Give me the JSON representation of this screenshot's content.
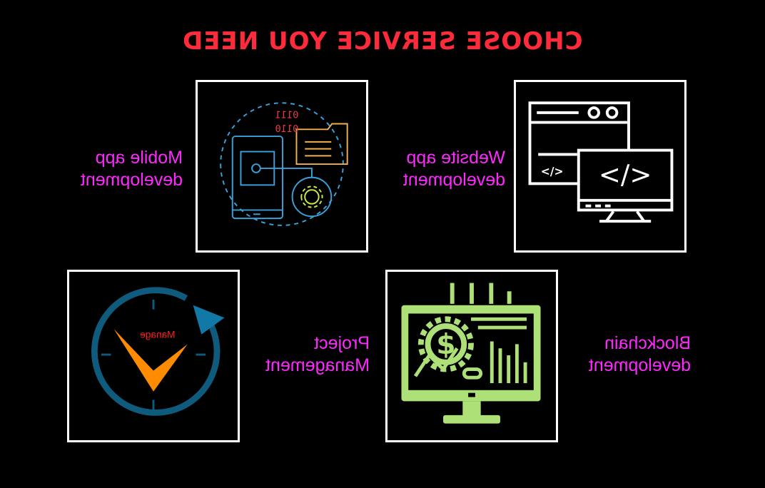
{
  "title": "CHOOSE SERVICE YOU NEED",
  "services": [
    {
      "line1": "Mobile app",
      "line2": "development",
      "icon": "mobile-app-icon",
      "binary1": "0111",
      "binary2": "0110"
    },
    {
      "line1": "Website app",
      "line2": "development",
      "icon": "website-code-icon",
      "code_symbol": "</>"
    },
    {
      "line1": "Project",
      "line2": "Management",
      "icon": "clock-icon",
      "badge": "Manage"
    },
    {
      "line1": "Blockchain",
      "line2": "development",
      "icon": "blockchain-monitor-icon"
    }
  ],
  "colors": {
    "title": "#ff2b3a",
    "label": "#ff29ff",
    "card_border": "#ffffff",
    "background": "#000000"
  }
}
